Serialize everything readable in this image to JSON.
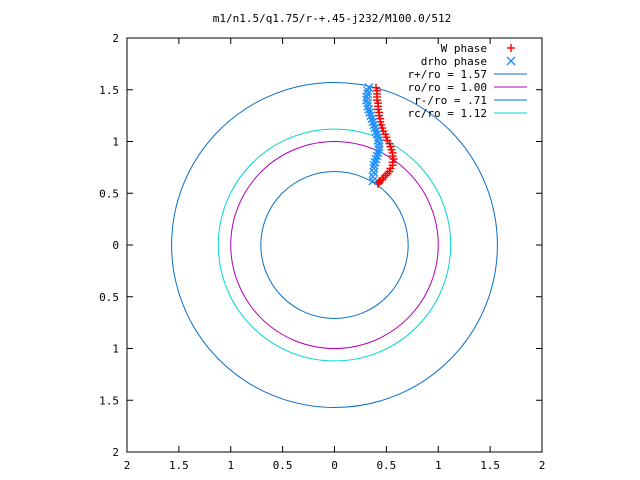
{
  "chart_data": {
    "type": "scatter",
    "title": "m1/n1.5/q1.75/r-+.45-j232/M100.0/512",
    "xlabel": "",
    "ylabel": "",
    "xlim": [
      -2,
      2
    ],
    "ylim": [
      -2,
      2
    ],
    "x_tick_values": [
      -2,
      -1.5,
      -1,
      -0.5,
      0,
      0.5,
      1,
      1.5,
      2
    ],
    "x_tick_labels": [
      "2",
      "1.5",
      "1",
      "0.5",
      "0",
      "0.5",
      "1",
      "1.5",
      "2"
    ],
    "y_tick_values": [
      2,
      1.5,
      1,
      0.5,
      0,
      -0.5,
      -1,
      -1.5,
      -2
    ],
    "y_tick_labels": [
      "2",
      "1.5",
      "1",
      "0.5",
      "0",
      "0.5",
      "1",
      "1.5",
      "2"
    ],
    "grid": false,
    "legend_position": "top-right",
    "series": [
      {
        "name": "W phase",
        "kind": "points",
        "marker": "plus",
        "color": "#ff0000",
        "x": [
          0.4,
          0.41,
          0.41,
          0.41,
          0.41,
          0.42,
          0.42,
          0.42,
          0.43,
          0.43,
          0.44,
          0.44,
          0.45,
          0.46,
          0.47,
          0.49,
          0.5,
          0.51,
          0.53,
          0.54,
          0.55,
          0.56,
          0.56,
          0.57,
          0.56,
          0.56,
          0.54,
          0.53,
          0.51,
          0.49,
          0.47,
          0.46,
          0.44,
          0.43,
          0.42,
          0.42
        ],
        "y": [
          1.52,
          1.49,
          1.46,
          1.43,
          1.4,
          1.37,
          1.34,
          1.31,
          1.28,
          1.25,
          1.22,
          1.19,
          1.16,
          1.13,
          1.1,
          1.07,
          1.04,
          1.01,
          0.98,
          0.95,
          0.92,
          0.89,
          0.86,
          0.83,
          0.8,
          0.77,
          0.74,
          0.71,
          0.69,
          0.67,
          0.65,
          0.63,
          0.62,
          0.61,
          0.6,
          0.59
        ]
      },
      {
        "name": "drho phase",
        "kind": "points",
        "marker": "cross",
        "color": "#1e8fff",
        "x": [
          0.33,
          0.32,
          0.32,
          0.31,
          0.31,
          0.32,
          0.32,
          0.33,
          0.34,
          0.35,
          0.36,
          0.37,
          0.38,
          0.39,
          0.4,
          0.41,
          0.42,
          0.42,
          0.43,
          0.43,
          0.43,
          0.42,
          0.41,
          0.4,
          0.39,
          0.38,
          0.38,
          0.38,
          0.37,
          0.37
        ],
        "y": [
          1.52,
          1.49,
          1.46,
          1.43,
          1.4,
          1.37,
          1.34,
          1.31,
          1.28,
          1.25,
          1.22,
          1.19,
          1.16,
          1.13,
          1.1,
          1.07,
          1.04,
          1.01,
          0.98,
          0.95,
          0.92,
          0.89,
          0.86,
          0.83,
          0.8,
          0.77,
          0.74,
          0.7,
          0.66,
          0.62
        ]
      },
      {
        "name": "r+/ro = 1.57",
        "kind": "circle",
        "radius": 1.57,
        "color": "#0a6fc7"
      },
      {
        "name": "ro/ro = 1.00",
        "kind": "circle",
        "radius": 1.0,
        "color": "#b000b0"
      },
      {
        "name": "r-/ro = .71",
        "kind": "circle",
        "radius": 0.71,
        "color": "#0a6fc7"
      },
      {
        "name": "rc/ro = 1.12",
        "kind": "circle",
        "radius": 1.12,
        "color": "#00d4d4"
      }
    ]
  }
}
